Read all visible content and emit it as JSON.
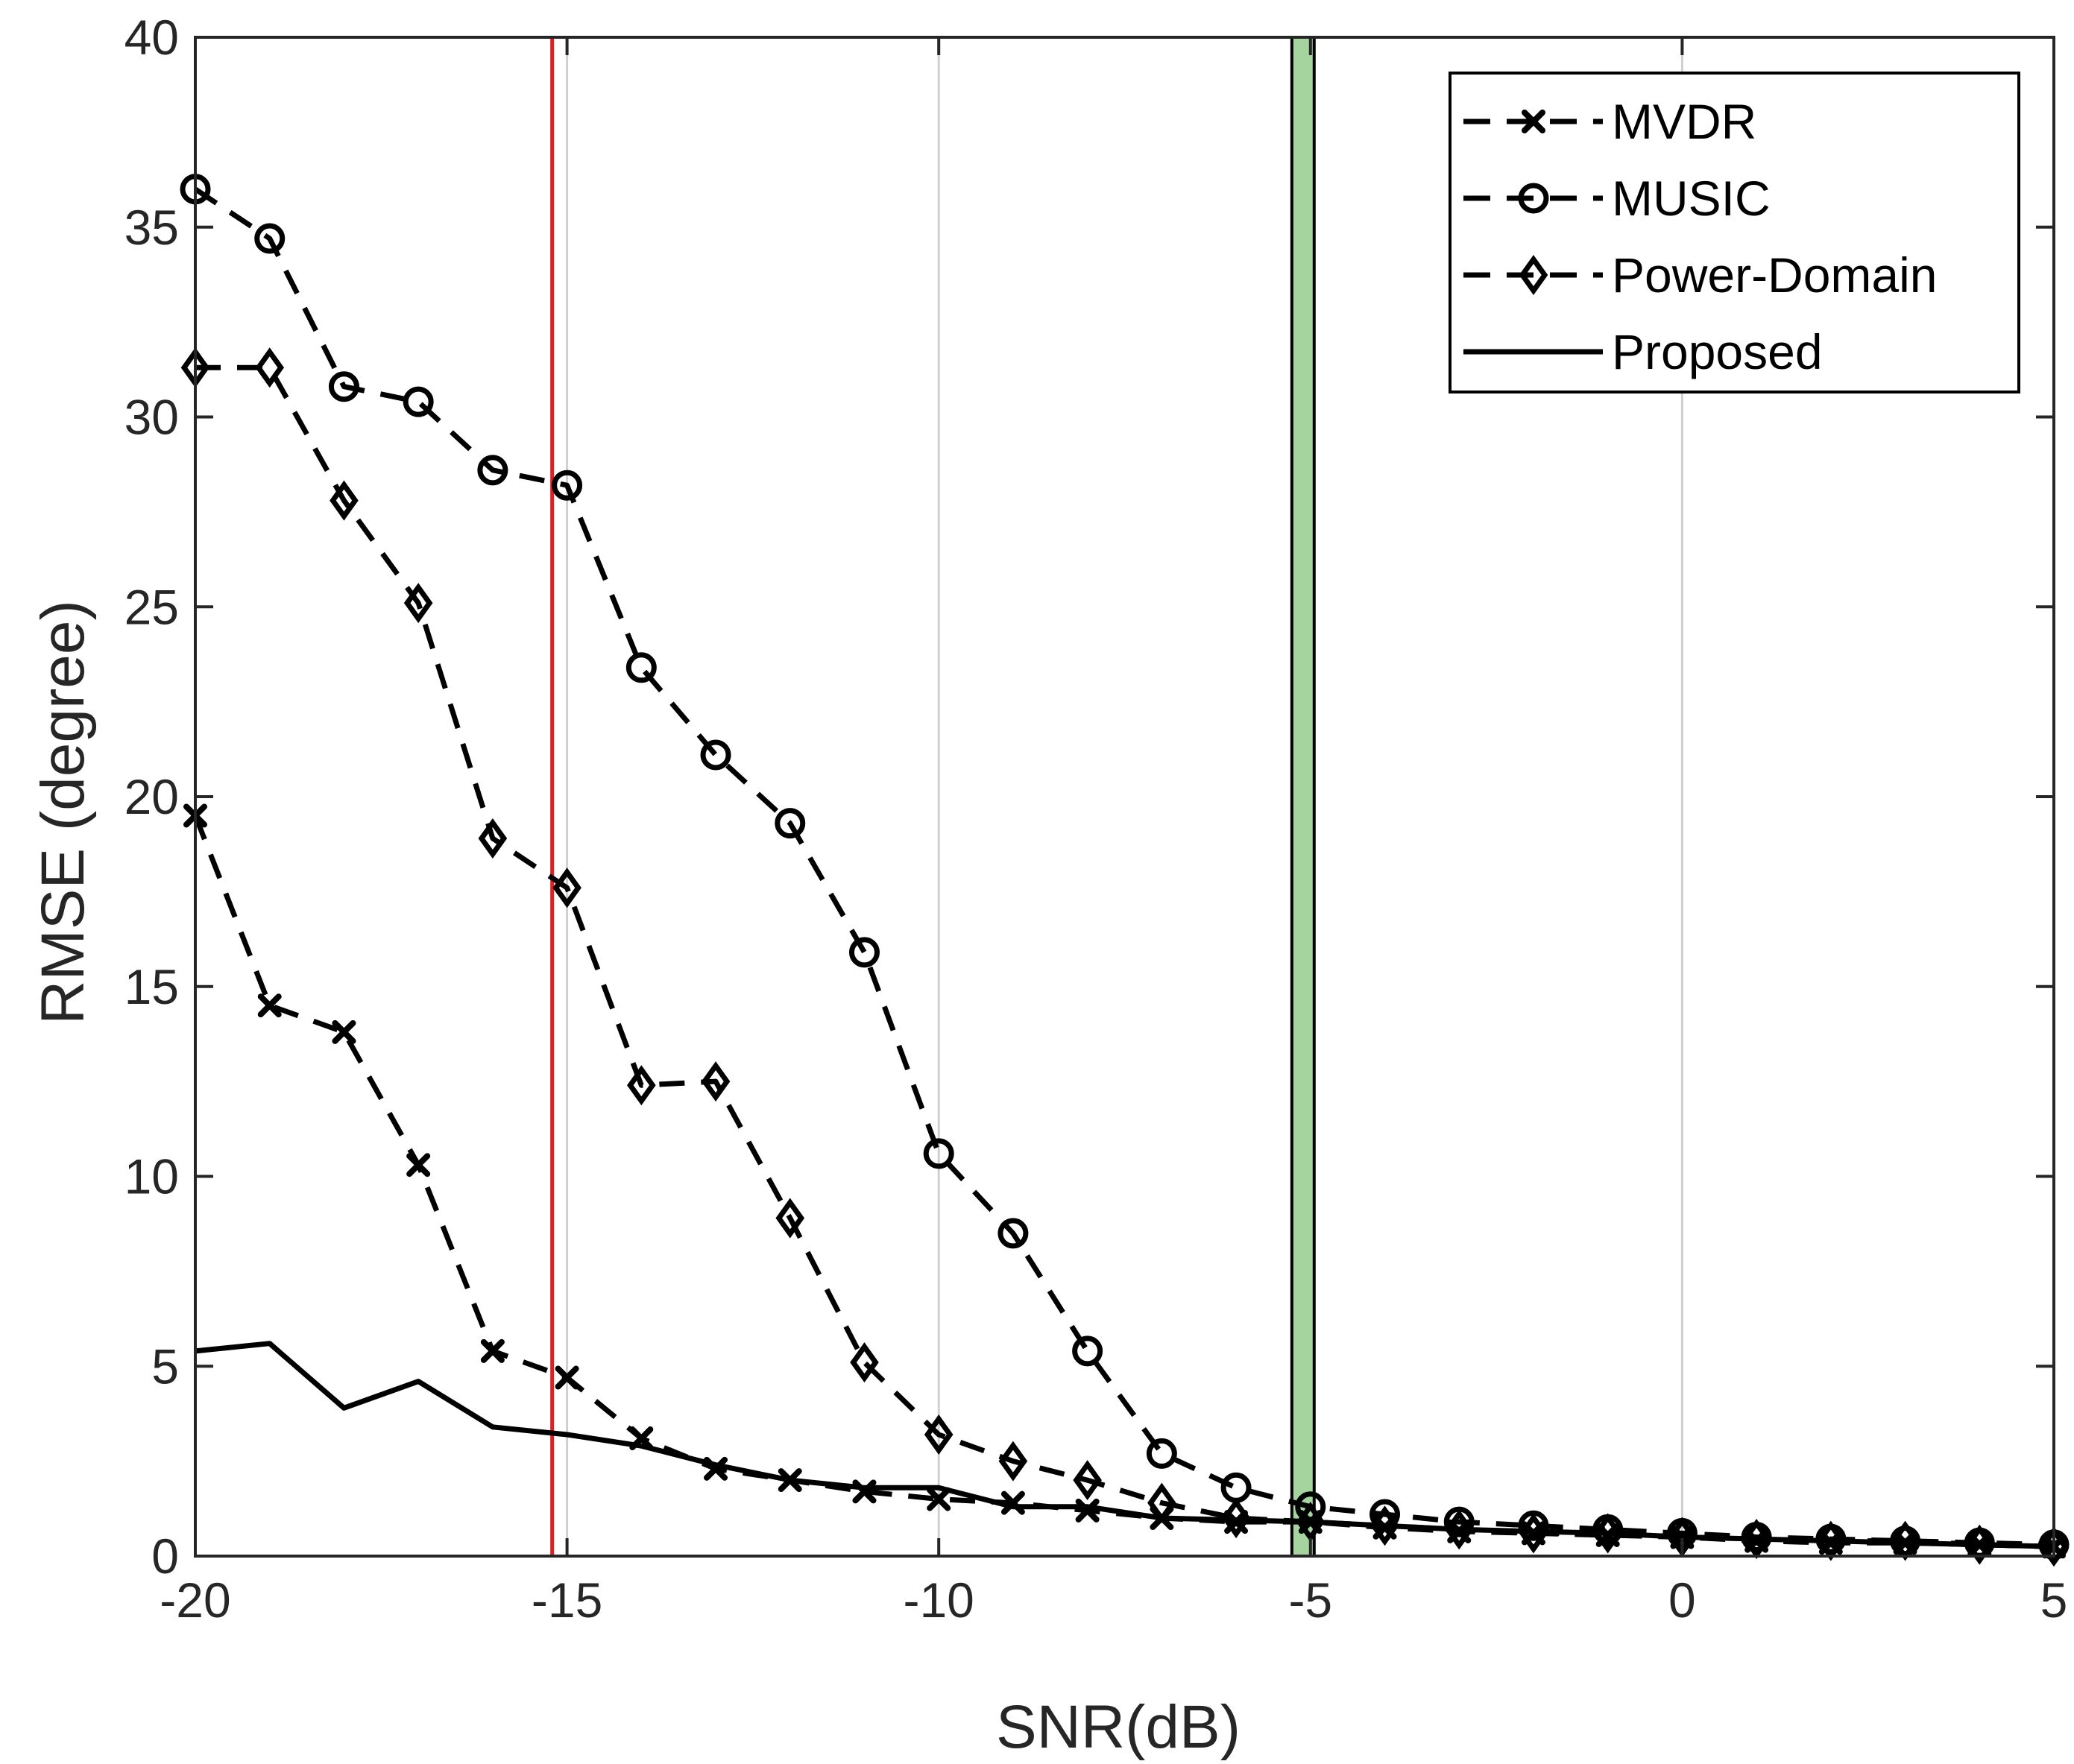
{
  "chart_data": {
    "type": "line",
    "title": "",
    "xlabel": "SNR(dB)",
    "ylabel": "RMSE (degree)",
    "xlim": [
      -20,
      5
    ],
    "ylim": [
      0,
      40
    ],
    "xticks": [
      -20,
      -15,
      -10,
      -5,
      0,
      5
    ],
    "yticks": [
      0,
      5,
      10,
      15,
      20,
      25,
      30,
      35,
      40
    ],
    "xtick_labels": [
      "-20",
      "-15",
      "-10",
      "-5",
      "0",
      "5"
    ],
    "ytick_labels": [
      "0",
      "5",
      "10",
      "15",
      "20",
      "25",
      "30",
      "35",
      "40"
    ],
    "grid": "vertical",
    "legend_position": "top-right",
    "x": [
      -20,
      -19,
      -18,
      -17,
      -16,
      -15,
      -14,
      -13,
      -12,
      -11,
      -10,
      -9,
      -8,
      -7,
      -6,
      -5,
      -4,
      -3,
      -2,
      -1,
      0,
      1,
      2,
      3,
      4,
      5
    ],
    "series": [
      {
        "name": "MVDR",
        "marker": "x",
        "style": "dashed",
        "values": [
          19.5,
          14.5,
          13.8,
          10.3,
          5.4,
          4.7,
          3.1,
          2.3,
          2.0,
          1.7,
          1.5,
          1.4,
          1.2,
          1.0,
          0.9,
          0.9,
          0.75,
          0.65,
          0.6,
          0.55,
          0.5,
          0.4,
          0.35,
          0.35,
          0.3,
          0.25
        ]
      },
      {
        "name": "MUSIC",
        "marker": "o",
        "style": "dashed",
        "values": [
          36.0,
          34.7,
          30.8,
          30.4,
          28.6,
          28.2,
          23.4,
          21.1,
          19.3,
          15.9,
          10.6,
          8.5,
          5.4,
          2.7,
          1.8,
          1.3,
          1.1,
          0.9,
          0.8,
          0.7,
          0.6,
          0.5,
          0.45,
          0.4,
          0.35,
          0.3
        ]
      },
      {
        "name": "Power-Domain",
        "marker": "diamond",
        "style": "dashed",
        "values": [
          31.3,
          31.3,
          27.8,
          25.1,
          18.9,
          17.6,
          12.4,
          12.5,
          8.9,
          5.1,
          3.2,
          2.5,
          2.0,
          1.4,
          1.0,
          0.9,
          0.8,
          0.7,
          0.6,
          0.6,
          0.5,
          0.45,
          0.4,
          0.4,
          0.3,
          0.25
        ]
      },
      {
        "name": "Proposed",
        "marker": "none",
        "style": "solid",
        "values": [
          5.4,
          5.6,
          3.9,
          4.6,
          3.4,
          3.2,
          2.9,
          2.4,
          2.0,
          1.8,
          1.8,
          1.3,
          1.3,
          1.0,
          0.95,
          0.9,
          0.8,
          0.7,
          0.65,
          0.6,
          0.5,
          0.45,
          0.4,
          0.35,
          0.3,
          0.25
        ]
      }
    ],
    "annotations": [
      {
        "type": "vertical-line",
        "x": -15.2,
        "color": "#e02020"
      },
      {
        "type": "vertical-band",
        "x_from": -5.25,
        "x_to": -4.95,
        "color": "#a6d49f"
      }
    ]
  }
}
